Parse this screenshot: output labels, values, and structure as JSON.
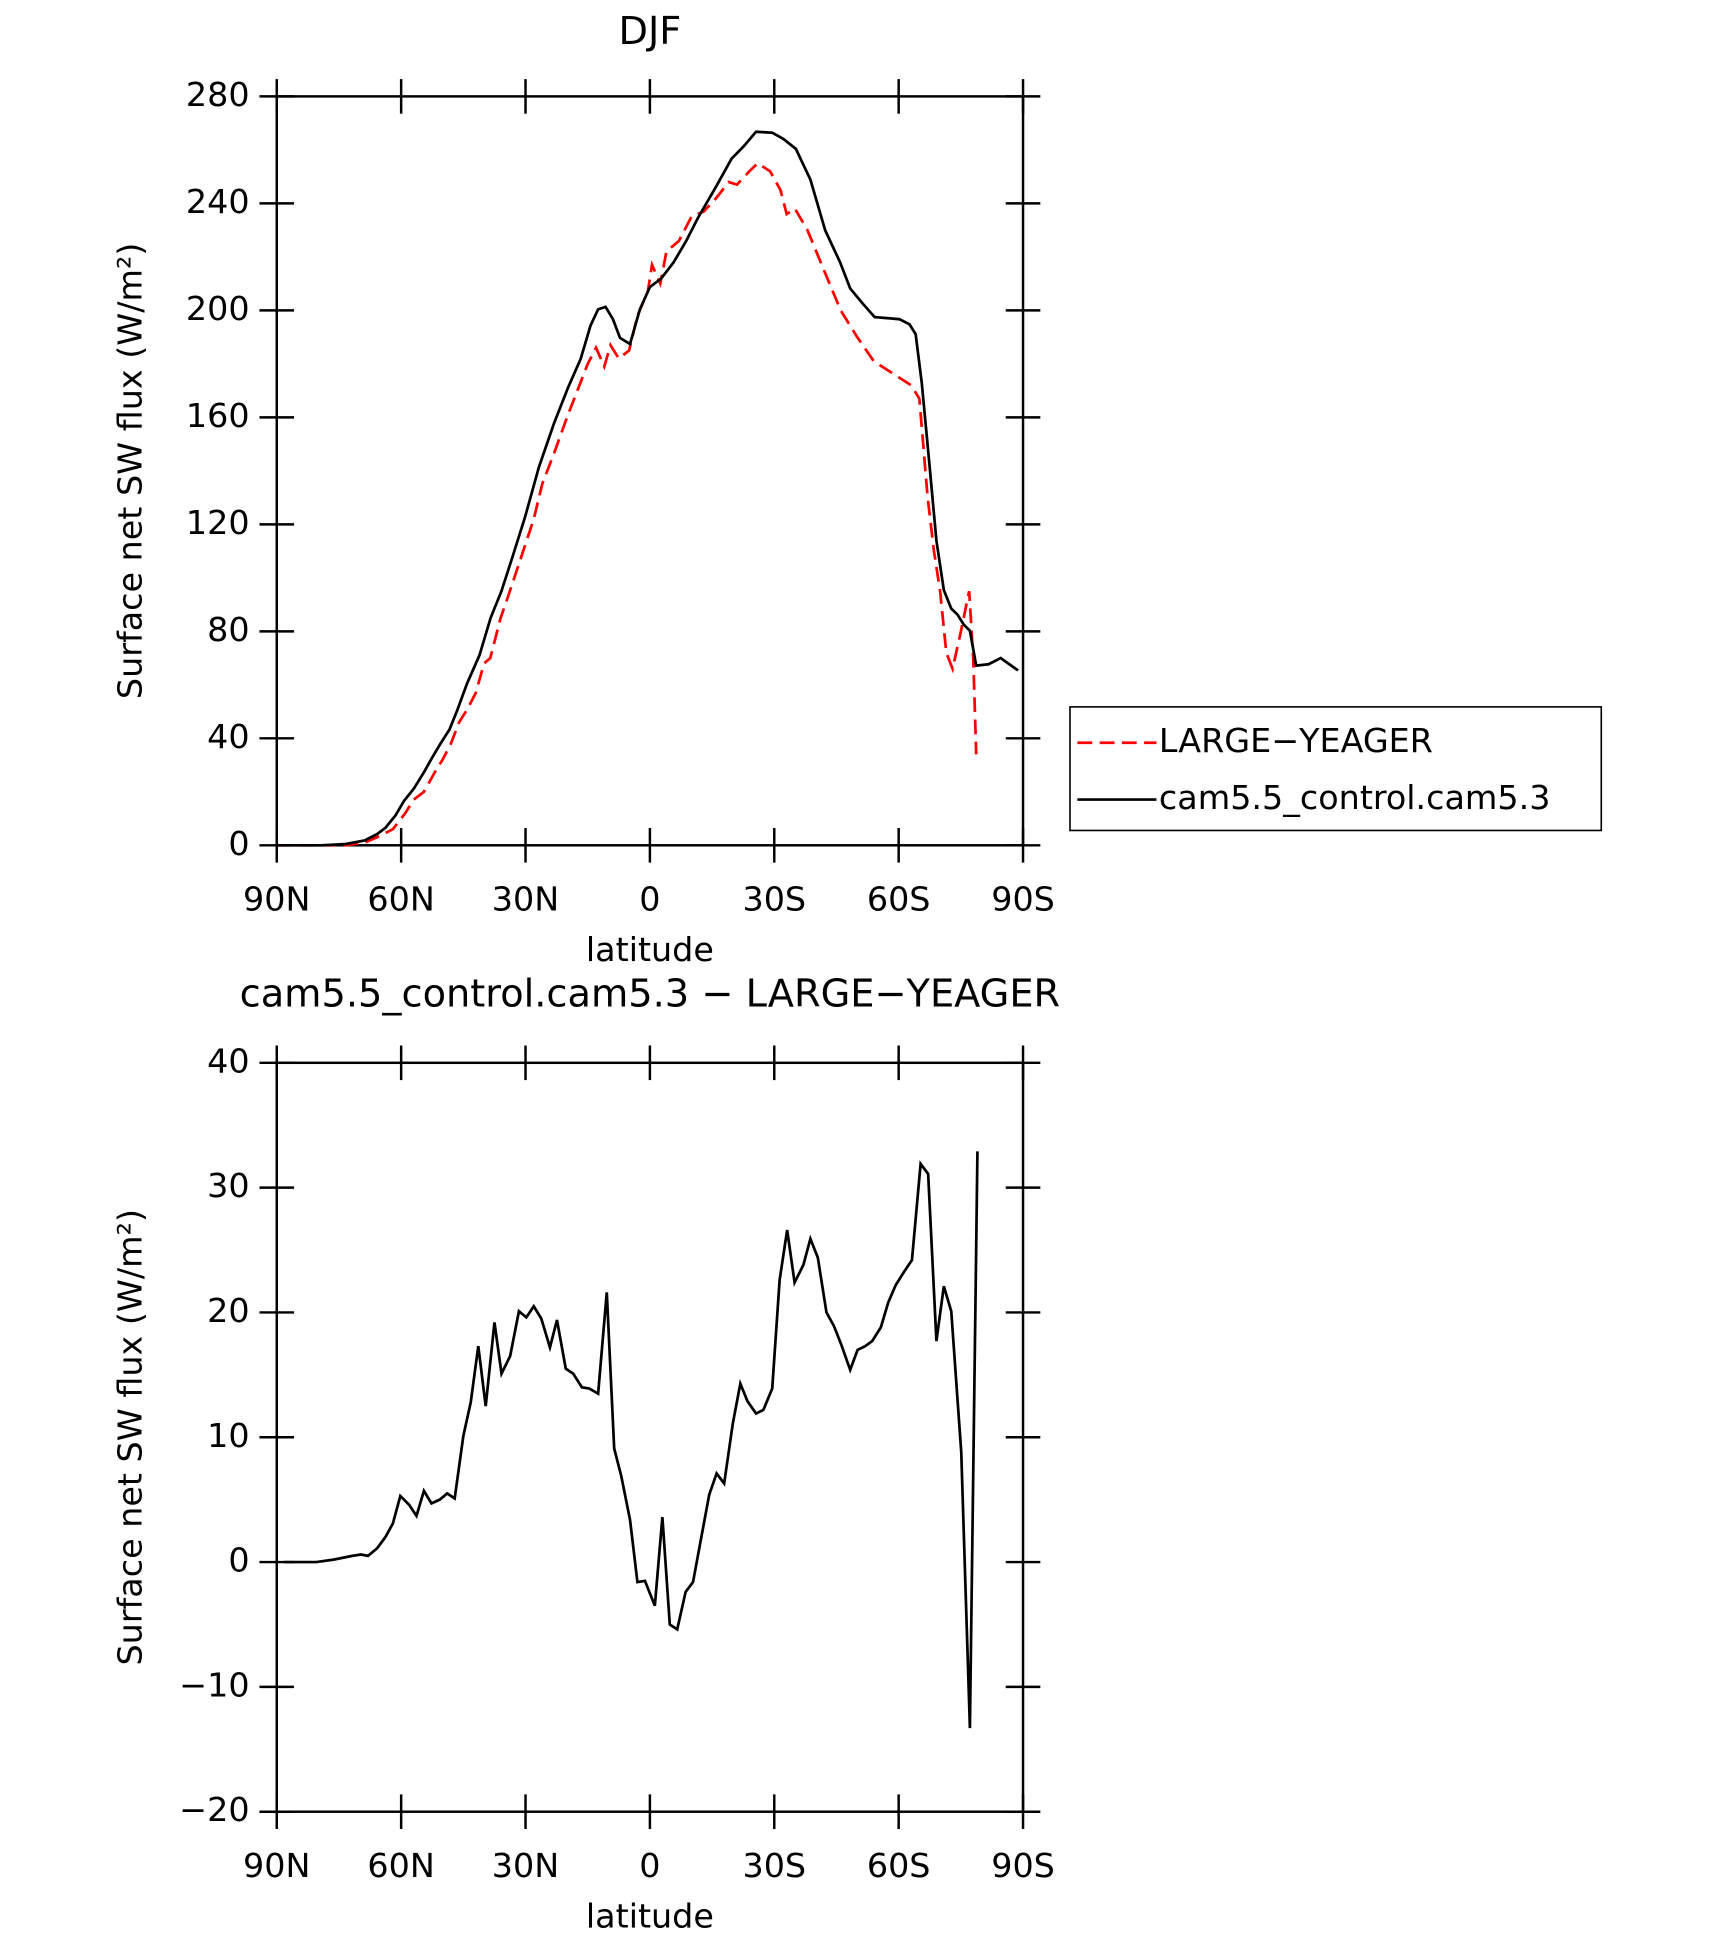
{
  "chart_data": [
    {
      "type": "line",
      "title": "DJF",
      "x_label": "latitude",
      "y_label": "Surface net SW flux (W/m²)",
      "xlim": [
        90,
        -90
      ],
      "ylim": [
        0,
        280
      ],
      "xticks": [
        {
          "value": 90,
          "label": "90N"
        },
        {
          "value": 60,
          "label": "60N"
        },
        {
          "value": 30,
          "label": "30N"
        },
        0,
        {
          "value": -30,
          "label": "30S"
        },
        {
          "value": -60,
          "label": "60S"
        },
        {
          "value": -90,
          "label": "90S"
        }
      ],
      "yticks": [
        0,
        40,
        80,
        120,
        160,
        200,
        240,
        280
      ],
      "legend": "right",
      "series": [
        {
          "name": "LARGE−YEAGER",
          "color": "#ff0000",
          "line_style": "dashed",
          "x": [
            90,
            73.3,
            68.8,
            65.8,
            62,
            59,
            57,
            54.5,
            52,
            50,
            48,
            46,
            44,
            42,
            40,
            38.5,
            36,
            34,
            31,
            28,
            26,
            23,
            20,
            17,
            15,
            13,
            11,
            9.5,
            7.5,
            5,
            3,
            0.5,
            -0.5,
            -2.5,
            -4,
            -7,
            -10,
            -13,
            -16,
            -19,
            -21,
            -24,
            -26,
            -29,
            -31.5,
            -33,
            -35,
            -38,
            -42,
            -46,
            -50,
            -54,
            -57,
            -60,
            -63,
            -65,
            -67,
            -68.5,
            -70,
            -71.5,
            -73,
            -75,
            -77,
            -78,
            -78.7
          ],
          "values": [
            0,
            0,
            1,
            3,
            6,
            12,
            17,
            20,
            27,
            32,
            38,
            46,
            51,
            57,
            68,
            70,
            85,
            94,
            108,
            122,
            135,
            147,
            160,
            172,
            180,
            186,
            179,
            187,
            182,
            185,
            198,
            207,
            217,
            210,
            222,
            226,
            235,
            237,
            242,
            248,
            247,
            252,
            255,
            252,
            245,
            236,
            238,
            230,
            215,
            200,
            190,
            181,
            178,
            175,
            172,
            167,
            130,
            110,
            95,
            72,
            66,
            80,
            95,
            70,
            34
          ]
        },
        {
          "name": "cam5.5_control.cam5.3",
          "color": "#000000",
          "line_style": "solid",
          "x": [
            90,
            79.3,
            73.3,
            68.8,
            65.8,
            63.8,
            61.4,
            59.3,
            56.9,
            54.5,
            52.5,
            50.4,
            48.3,
            46.5,
            44.1,
            41.1,
            38.4,
            35.8,
            33.1,
            30.1,
            26.8,
            23.2,
            19.7,
            16.7,
            14.3,
            12.5,
            10.7,
            8.9,
            7.2,
            4.8,
            2.4,
            0,
            -2.7,
            -5.7,
            -8.7,
            -11.6,
            -16.1,
            -19.7,
            -22.6,
            -25.6,
            -29.5,
            -32.2,
            -35.2,
            -38.7,
            -42.3,
            -45.9,
            -48.3,
            -51.3,
            -54.2,
            -57.2,
            -60.2,
            -62.6,
            -64.1,
            -65.6,
            -67.4,
            -69.1,
            -70.9,
            -72.7,
            -74.2,
            -75.7,
            -77.2,
            -78.7,
            -81.7,
            -84.6,
            -86.7,
            -88.8
          ],
          "values": [
            0,
            0,
            0.5,
            1.8,
            4.2,
            6.5,
            11.1,
            16.6,
            21.3,
            27.3,
            32.8,
            38.3,
            43.4,
            50.4,
            60.5,
            71.1,
            85,
            95.1,
            108,
            122.8,
            141.3,
            157.5,
            171.3,
            181.9,
            194.4,
            200.4,
            201.3,
            196.7,
            189.7,
            187.4,
            200.4,
            208.7,
            211.9,
            217.9,
            225.8,
            234.6,
            246.6,
            256.7,
            261.3,
            266.8,
            266.4,
            264.1,
            260.4,
            248.9,
            229.9,
            217.9,
            208.2,
            202.6,
            197.5,
            197.1,
            196.7,
            194.8,
            191.1,
            172.6,
            142.6,
            113.9,
            95.4,
            88.5,
            86.2,
            82.5,
            80.2,
            67.2,
            67.7,
            70,
            67.7,
            65.4
          ]
        }
      ]
    },
    {
      "type": "line",
      "title": "cam5.5_control.cam5.3 − LARGE−YEAGER",
      "x_label": "latitude",
      "y_label": "Surface net SW flux (W/m²)",
      "xlim": [
        90,
        -90
      ],
      "ylim": [
        -20,
        40
      ],
      "xticks": [
        {
          "value": 90,
          "label": "90N"
        },
        {
          "value": 60,
          "label": "60N"
        },
        {
          "value": 30,
          "label": "30N"
        },
        0,
        {
          "value": -30,
          "label": "30S"
        },
        {
          "value": -60,
          "label": "60S"
        },
        {
          "value": -90,
          "label": "90S"
        }
      ],
      "yticks": [
        {
          "value": -20,
          "label": "−20"
        },
        {
          "value": -10,
          "label": "−10"
        },
        0,
        10,
        20,
        30,
        40
      ],
      "color": "#000000",
      "x": [
        88.2,
        80.5,
        76.3,
        71.8,
        69.7,
        68,
        65.8,
        63.8,
        62,
        60.2,
        58.1,
        56.3,
        54.5,
        52.7,
        50.7,
        48.9,
        47.1,
        45,
        43.2,
        41.4,
        39.6,
        37.5,
        35.8,
        33.7,
        31.6,
        29.8,
        28,
        26.2,
        24.1,
        22.4,
        20.3,
        18.5,
        16.4,
        14.6,
        12.5,
        10.4,
        8.6,
        6.9,
        4.8,
        3,
        1.2,
        -1.2,
        -3,
        -4.8,
        -6.6,
        -8.6,
        -10.4,
        -12.2,
        -14.3,
        -16.1,
        -17.9,
        -20,
        -21.8,
        -23.5,
        -25.6,
        -27.4,
        -29.5,
        -31.3,
        -33.1,
        -34.9,
        -37,
        -38.7,
        -40.5,
        -42.6,
        -44.4,
        -46.2,
        -48.3,
        -50.1,
        -51.9,
        -53.6,
        -55.7,
        -57.5,
        -59.3,
        -61.4,
        -63.2,
        -65.3,
        -67.1,
        -69.1,
        -70.9,
        -72.7,
        -75.1,
        -77.2,
        -79
      ],
      "values": [
        0,
        0,
        0.2,
        0.5,
        0.6,
        0.5,
        1.1,
        2,
        3.1,
        5.3,
        4.6,
        3.7,
        5.7,
        4.7,
        5,
        5.5,
        5.1,
        10.1,
        12.8,
        17.3,
        12.5,
        19.2,
        15.1,
        16.5,
        20.1,
        19.6,
        20.5,
        19.5,
        17.2,
        19.4,
        15.5,
        15.1,
        14,
        13.9,
        13.5,
        21.6,
        9.1,
        6.9,
        3.4,
        -1.6,
        -1.5,
        -3.5,
        3.6,
        -5,
        -5.4,
        -2.4,
        -1.6,
        1.6,
        5.4,
        7.1,
        6.3,
        11.1,
        14.3,
        12.9,
        11.9,
        12.2,
        13.9,
        22.6,
        26.6,
        22.4,
        23.8,
        25.9,
        24.4,
        20,
        18.9,
        17.4,
        15.4,
        17,
        17.3,
        17.7,
        18.8,
        20.8,
        22.2,
        23.3,
        24.2,
        31.9,
        31.1,
        17.7,
        22.1,
        20.1,
        8.8,
        -13.3,
        32.9
      ]
    }
  ]
}
